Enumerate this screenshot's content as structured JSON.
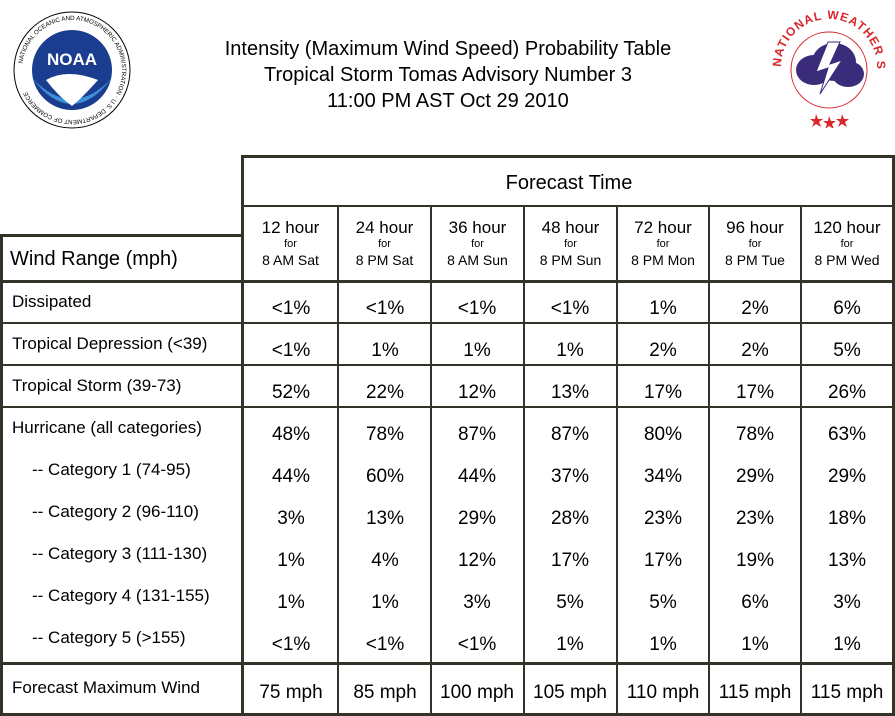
{
  "header": {
    "title_line1": "Intensity (Maximum Wind Speed) Probability Table",
    "title_line2": "Tropical Storm Tomas Advisory Number 3",
    "title_line3": "11:00 PM AST Oct 29 2010"
  },
  "logos": {
    "noaa": {
      "inner_text": "NOAA",
      "ring_text": "NATIONAL OCEANIC AND ATMOSPHERIC ADMINISTRATION · U.S. DEPARTMENT OF COMMERCE"
    },
    "nws": {
      "ring_text": "NATIONAL WEATHER SERVICE"
    }
  },
  "table": {
    "forecast_time_label": "Forecast Time",
    "wind_range_label": "Wind Range (mph)",
    "columns": [
      {
        "hour": "12 hour",
        "for": "for",
        "when": "8 AM Sat"
      },
      {
        "hour": "24 hour",
        "for": "for",
        "when": "8 PM Sat"
      },
      {
        "hour": "36 hour",
        "for": "for",
        "when": "8 AM Sun"
      },
      {
        "hour": "48 hour",
        "for": "for",
        "when": "8 PM Sun"
      },
      {
        "hour": "72 hour",
        "for": "for",
        "when": "8 PM Mon"
      },
      {
        "hour": "96 hour",
        "for": "for",
        "when": "8 PM Tue"
      },
      {
        "hour": "120 hour",
        "for": "for",
        "when": "8 PM Wed"
      }
    ],
    "rows": [
      {
        "label": "Dissipated",
        "values": [
          "<1%",
          "<1%",
          "<1%",
          "<1%",
          "1%",
          "2%",
          "6%"
        ]
      },
      {
        "label": "Tropical Depression (<39)",
        "values": [
          "<1%",
          "1%",
          "1%",
          "1%",
          "2%",
          "2%",
          "5%"
        ]
      },
      {
        "label": "Tropical Storm (39-73)",
        "values": [
          "52%",
          "22%",
          "12%",
          "13%",
          "17%",
          "17%",
          "26%"
        ]
      },
      {
        "label": "Hurricane (all categories)",
        "values": [
          "48%",
          "78%",
          "87%",
          "87%",
          "80%",
          "78%",
          "63%"
        ]
      },
      {
        "label": "-- Category 1 (74-95)",
        "values": [
          "44%",
          "60%",
          "44%",
          "37%",
          "34%",
          "29%",
          "29%"
        ]
      },
      {
        "label": "-- Category 2 (96-110)",
        "values": [
          "3%",
          "13%",
          "29%",
          "28%",
          "23%",
          "23%",
          "18%"
        ]
      },
      {
        "label": "-- Category 3 (111-130)",
        "values": [
          "1%",
          "4%",
          "12%",
          "17%",
          "17%",
          "19%",
          "13%"
        ]
      },
      {
        "label": "-- Category 4 (131-155)",
        "values": [
          "1%",
          "1%",
          "3%",
          "5%",
          "5%",
          "6%",
          "3%"
        ]
      },
      {
        "label": "-- Category 5 (>155)",
        "values": [
          "<1%",
          "<1%",
          "<1%",
          "1%",
          "1%",
          "1%",
          "1%"
        ]
      }
    ],
    "max_wind": {
      "label": "Forecast Maximum Wind",
      "values": [
        "75 mph",
        "85 mph",
        "100 mph",
        "105 mph",
        "110 mph",
        "115 mph",
        "115 mph"
      ]
    }
  },
  "colors": {
    "border": "#33332a",
    "noaa_blue": "#1a3d8f",
    "noaa_light_blue": "#3d8fd8",
    "nws_red": "#d8262b",
    "nws_cloud": "#3a2c7a"
  }
}
